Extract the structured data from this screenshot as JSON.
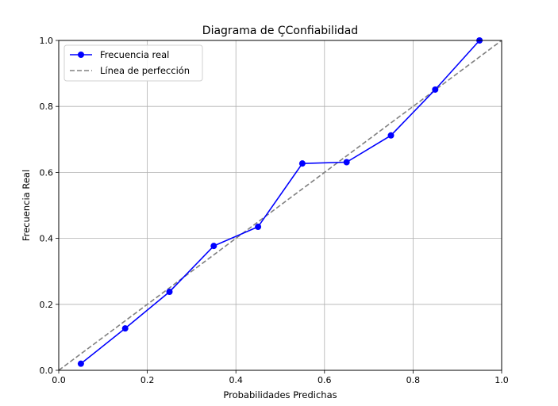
{
  "chart_data": {
    "type": "line",
    "title": "Diagrama de ÇConfiabilidad",
    "xlabel": "Probabilidades Predichas",
    "ylabel": "Frecuencia Real",
    "xlim": [
      0.0,
      1.0
    ],
    "ylim": [
      0.0,
      1.0
    ],
    "xticks": [
      0.0,
      0.2,
      0.4,
      0.6,
      0.8,
      1.0
    ],
    "yticks": [
      0.0,
      0.2,
      0.4,
      0.6,
      0.8,
      1.0
    ],
    "xtick_labels": [
      "0.0",
      "0.2",
      "0.4",
      "0.6",
      "0.8",
      "1.0"
    ],
    "ytick_labels": [
      "0.0",
      "0.2",
      "0.4",
      "0.6",
      "0.8",
      "1.0"
    ],
    "grid": true,
    "legend_position": "top-left",
    "series": [
      {
        "name": "Frecuencia real",
        "color": "#0000ff",
        "marker": "circle",
        "line_style": "solid",
        "x": [
          0.05,
          0.15,
          0.25,
          0.35,
          0.45,
          0.55,
          0.65,
          0.75,
          0.85,
          0.95
        ],
        "y": [
          0.02,
          0.127,
          0.238,
          0.377,
          0.435,
          0.627,
          0.631,
          0.712,
          0.851,
          1.0
        ]
      },
      {
        "name": "Línea de perfección",
        "color": "#808080",
        "marker": "none",
        "line_style": "dashed",
        "x": [
          0.0,
          1.0
        ],
        "y": [
          0.0,
          1.0
        ]
      }
    ]
  }
}
